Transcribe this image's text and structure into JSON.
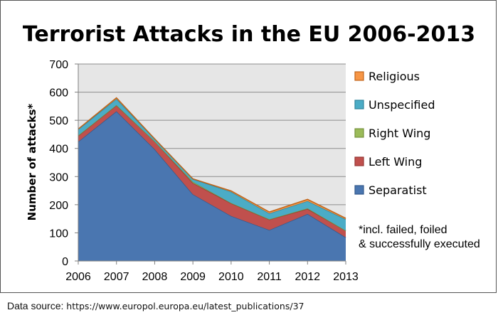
{
  "chart_data": {
    "type": "area",
    "stacked": true,
    "title": "Terrorist Attacks in the EU 2006-2013",
    "ylabel": "Number of attacks*",
    "xlabel": "",
    "x": [
      2006,
      2007,
      2008,
      2009,
      2010,
      2011,
      2012,
      2013
    ],
    "ylim": [
      0,
      700
    ],
    "yticks": [
      0,
      100,
      200,
      300,
      400,
      500,
      600,
      700
    ],
    "grid": true,
    "legend_position": "right",
    "series": [
      {
        "name": "Separatist",
        "color": "#4a76b0",
        "edge": "#355a8c",
        "values": [
          424,
          532,
          397,
          237,
          160,
          110,
          167,
          84
        ]
      },
      {
        "name": "Left Wing",
        "color": "#c0504d",
        "edge": "#953735",
        "values": [
          21,
          21,
          28,
          40,
          45,
          37,
          18,
          24
        ]
      },
      {
        "name": "Right Wing",
        "color": "#9bbb59",
        "edge": "#76923c",
        "values": [
          1,
          1,
          0,
          4,
          1,
          1,
          2,
          0
        ]
      },
      {
        "name": "Unspecified",
        "color": "#4bacc6",
        "edge": "#31859c",
        "values": [
          22,
          22,
          9,
          10,
          40,
          21,
          26,
          40
        ]
      },
      {
        "name": "Religious",
        "color": "#f79646",
        "edge": "#c0651a",
        "values": [
          1,
          4,
          0,
          1,
          3,
          5,
          6,
          4
        ]
      }
    ],
    "note": [
      "*incl. failed, foiled",
      "& successfully executed"
    ]
  },
  "footer": {
    "label": "Data source: ",
    "url": "https://www.europol.europa.eu/latest_publications/37"
  }
}
